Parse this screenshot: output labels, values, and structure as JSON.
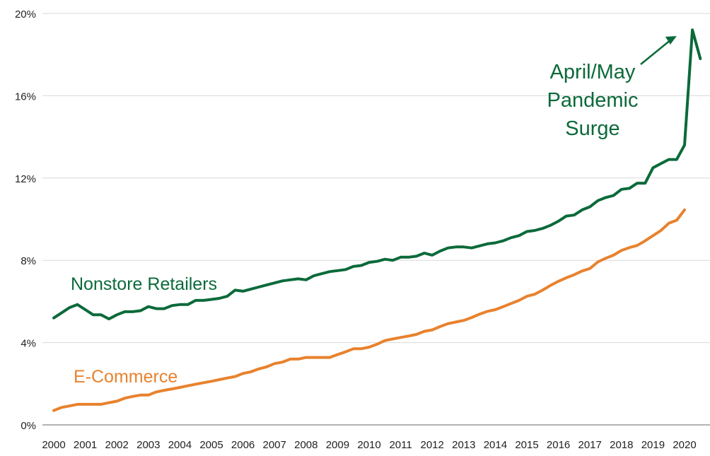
{
  "chart_data": {
    "type": "line",
    "title": "",
    "xlabel": "",
    "ylabel": "",
    "ylim": [
      0,
      20
    ],
    "xlim": [
      2000,
      2020.75
    ],
    "grid": true,
    "yticks": [
      0,
      4,
      8,
      12,
      16,
      20
    ],
    "ytick_labels": [
      "0%",
      "4%",
      "8%",
      "12%",
      "16%",
      "20%"
    ],
    "xticks": [
      2000,
      2001,
      2002,
      2003,
      2004,
      2005,
      2006,
      2007,
      2008,
      2009,
      2010,
      2011,
      2012,
      2013,
      2014,
      2015,
      2016,
      2017,
      2018,
      2019,
      2020
    ],
    "xtick_labels": [
      "2000",
      "2001",
      "2002",
      "2003",
      "2004",
      "2005",
      "2006",
      "2007",
      "2008",
      "2009",
      "2010",
      "2011",
      "2012",
      "2013",
      "2014",
      "2015",
      "2016",
      "2017",
      "2018",
      "2019",
      "2020"
    ],
    "series": [
      {
        "name": "Nonstore Retailers",
        "color": "#0b6a3a",
        "label_position": "left of line, around 2000–2004",
        "x": [
          2000.0,
          2000.25,
          2000.5,
          2000.75,
          2001.0,
          2001.25,
          2001.5,
          2001.75,
          2002.0,
          2002.25,
          2002.5,
          2002.75,
          2003.0,
          2003.25,
          2003.5,
          2003.75,
          2004.0,
          2004.25,
          2004.5,
          2004.75,
          2005.0,
          2005.25,
          2005.5,
          2005.75,
          2006.0,
          2006.25,
          2006.5,
          2006.75,
          2007.0,
          2007.25,
          2007.5,
          2007.75,
          2008.0,
          2008.25,
          2008.5,
          2008.75,
          2009.0,
          2009.25,
          2009.5,
          2009.75,
          2010.0,
          2010.25,
          2010.5,
          2010.75,
          2011.0,
          2011.25,
          2011.5,
          2011.75,
          2012.0,
          2012.25,
          2012.5,
          2012.75,
          2013.0,
          2013.25,
          2013.5,
          2013.75,
          2014.0,
          2014.25,
          2014.5,
          2014.75,
          2015.0,
          2015.25,
          2015.5,
          2015.75,
          2016.0,
          2016.25,
          2016.5,
          2016.75,
          2017.0,
          2017.25,
          2017.5,
          2017.75,
          2018.0,
          2018.25,
          2018.5,
          2018.75,
          2019.0,
          2019.25,
          2019.5,
          2019.75,
          2020.0,
          2020.25,
          2020.5
        ],
        "values": [
          5.2,
          5.45,
          5.7,
          5.85,
          5.6,
          5.35,
          5.35,
          5.15,
          5.35,
          5.5,
          5.5,
          5.55,
          5.75,
          5.65,
          5.65,
          5.8,
          5.85,
          5.85,
          6.05,
          6.05,
          6.1,
          6.15,
          6.25,
          6.55,
          6.5,
          6.6,
          6.7,
          6.8,
          6.9,
          7.0,
          7.05,
          7.1,
          7.05,
          7.25,
          7.35,
          7.45,
          7.5,
          7.55,
          7.7,
          7.75,
          7.9,
          7.95,
          8.05,
          8.0,
          8.15,
          8.15,
          8.2,
          8.35,
          8.25,
          8.45,
          8.6,
          8.65,
          8.65,
          8.6,
          8.7,
          8.8,
          8.85,
          8.95,
          9.1,
          9.2,
          9.4,
          9.45,
          9.55,
          9.7,
          9.9,
          10.15,
          10.2,
          10.45,
          10.6,
          10.9,
          11.05,
          11.15,
          11.45,
          11.5,
          11.75,
          11.75,
          12.5,
          12.7,
          12.9,
          12.9,
          13.6,
          19.2,
          17.8
        ]
      },
      {
        "name": "E-Commerce",
        "color": "#e8822e",
        "label_position": "below line, around 2000–2003",
        "x": [
          2000.0,
          2000.25,
          2000.5,
          2000.75,
          2001.0,
          2001.25,
          2001.5,
          2001.75,
          2002.0,
          2002.25,
          2002.5,
          2002.75,
          2003.0,
          2003.25,
          2003.5,
          2003.75,
          2004.0,
          2004.25,
          2004.5,
          2004.75,
          2005.0,
          2005.25,
          2005.5,
          2005.75,
          2006.0,
          2006.25,
          2006.5,
          2006.75,
          2007.0,
          2007.25,
          2007.5,
          2007.75,
          2008.0,
          2008.25,
          2008.5,
          2008.75,
          2009.0,
          2009.25,
          2009.5,
          2009.75,
          2010.0,
          2010.25,
          2010.5,
          2010.75,
          2011.0,
          2011.25,
          2011.5,
          2011.75,
          2012.0,
          2012.25,
          2012.5,
          2012.75,
          2013.0,
          2013.25,
          2013.5,
          2013.75,
          2014.0,
          2014.25,
          2014.5,
          2014.75,
          2015.0,
          2015.25,
          2015.5,
          2015.75,
          2016.0,
          2016.25,
          2016.5,
          2016.75,
          2017.0,
          2017.25,
          2017.5,
          2017.75,
          2018.0,
          2018.25,
          2018.5,
          2018.75,
          2019.0,
          2019.25,
          2019.5,
          2019.75,
          2020.0
        ],
        "values": [
          0.7,
          0.85,
          0.92,
          1.0,
          1.0,
          1.0,
          1.0,
          1.08,
          1.15,
          1.3,
          1.38,
          1.45,
          1.45,
          1.6,
          1.68,
          1.75,
          1.82,
          1.9,
          1.98,
          2.05,
          2.12,
          2.2,
          2.28,
          2.35,
          2.5,
          2.58,
          2.72,
          2.82,
          2.98,
          3.05,
          3.2,
          3.2,
          3.28,
          3.28,
          3.28,
          3.28,
          3.42,
          3.55,
          3.7,
          3.7,
          3.78,
          3.92,
          4.1,
          4.18,
          4.25,
          4.32,
          4.4,
          4.55,
          4.62,
          4.78,
          4.92,
          5.0,
          5.08,
          5.22,
          5.38,
          5.52,
          5.6,
          5.75,
          5.9,
          6.05,
          6.25,
          6.35,
          6.55,
          6.78,
          6.98,
          7.15,
          7.3,
          7.48,
          7.6,
          7.92,
          8.1,
          8.25,
          8.48,
          8.62,
          8.72,
          8.95,
          9.2,
          9.45,
          9.8,
          9.95,
          10.45
        ]
      }
    ],
    "annotations": [
      {
        "lines": [
          "April/May",
          "Pandemic",
          "Surge"
        ],
        "color": "#0b6a3a",
        "target_x": 2019.75,
        "target_y": 18.9,
        "arrow": true
      }
    ]
  }
}
